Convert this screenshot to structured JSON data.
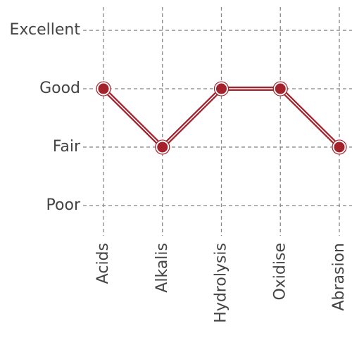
{
  "chart_data": {
    "type": "line",
    "categories": [
      "Acids",
      "Alkalis",
      "Hydrolysis",
      "Oxidise",
      "Abrasion"
    ],
    "values": [
      3,
      2,
      3,
      3,
      2
    ],
    "color": "#a4202a",
    "ylim": [
      0.6,
      4.4
    ],
    "yticks": [
      {
        "value": 1,
        "label": "Poor"
      },
      {
        "value": 2,
        "label": "Fair"
      },
      {
        "value": 3,
        "label": "Good"
      },
      {
        "value": 4,
        "label": "Excellent"
      }
    ],
    "grid": true
  }
}
